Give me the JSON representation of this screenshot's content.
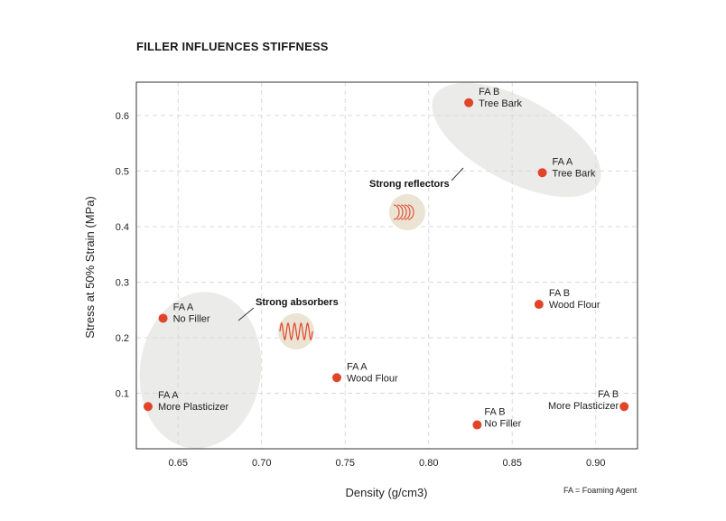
{
  "chart_data": {
    "type": "scatter",
    "title": "FILLER INFLUENCES STIFFNESS",
    "xlabel": "Density (g/cm3)",
    "ylabel": "Stress at 50% Strain (MPa)",
    "xlim": [
      0.625,
      0.925
    ],
    "ylim": [
      0.0,
      0.66
    ],
    "xticks": [
      "0.65",
      "0.70",
      "0.75",
      "0.80",
      "0.85",
      "0.90"
    ],
    "yticks": [
      "0.1",
      "0.2",
      "0.3",
      "0.4",
      "0.5",
      "0.6"
    ],
    "grid": true,
    "point_color": "#e0452a",
    "points": [
      {
        "x": 0.641,
        "y": 0.235,
        "line1": "FA A",
        "line2": "No Filler"
      },
      {
        "x": 0.632,
        "y": 0.076,
        "line1": "FA A",
        "line2": "More Plasticizer"
      },
      {
        "x": 0.745,
        "y": 0.128,
        "line1": "FA A",
        "line2": "Wood Flour"
      },
      {
        "x": 0.829,
        "y": 0.043,
        "line1": "FA  B",
        "line2": "No Filler"
      },
      {
        "x": 0.866,
        "y": 0.26,
        "line1": "FA  B",
        "line2": "Wood Flour"
      },
      {
        "x": 0.917,
        "y": 0.076,
        "line1": "FA  B",
        "line2": "More Plasticizer"
      },
      {
        "x": 0.824,
        "y": 0.623,
        "line1": "FA  B",
        "line2": "Tree Bark"
      },
      {
        "x": 0.868,
        "y": 0.497,
        "line1": "FA  A",
        "line2": "Tree Bark"
      }
    ],
    "annotations": {
      "absorbers": "Strong absorbers",
      "reflectors": "Strong reflectors"
    },
    "footnote": "FA = Foaming Agent"
  }
}
